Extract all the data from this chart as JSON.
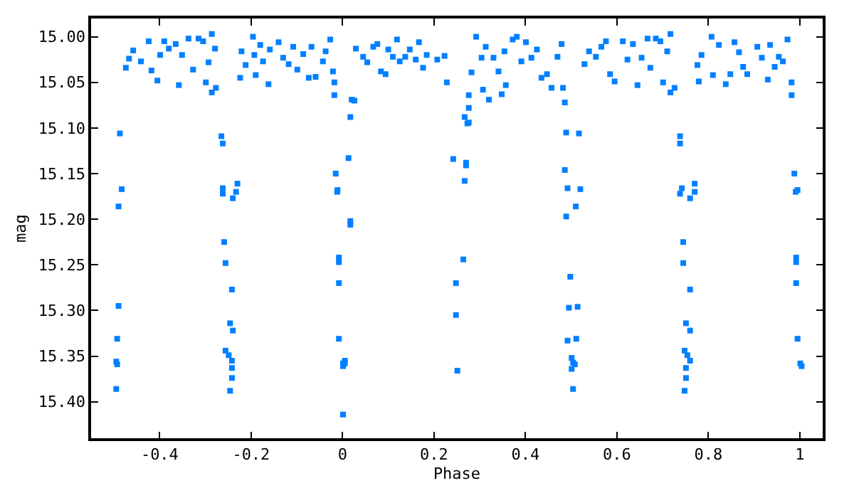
{
  "chart_data": {
    "type": "scatter",
    "xlabel": "Phase",
    "ylabel": "mag",
    "xlim": [
      -0.55,
      1.05
    ],
    "ylim": [
      15.44,
      14.98
    ],
    "xticks": [
      -0.4,
      -0.2,
      0,
      0.2,
      0.4,
      0.6,
      0.8,
      1
    ],
    "yticks": [
      {
        "value": 15.0,
        "label": "15.00"
      },
      {
        "value": 15.05,
        "label": "15.05"
      },
      {
        "value": 15.1,
        "label": "15.10"
      },
      {
        "value": 15.15,
        "label": "15.15"
      },
      {
        "value": 15.2,
        "label": "15.20"
      },
      {
        "value": 15.25,
        "label": "15.25"
      },
      {
        "value": 15.3,
        "label": "15.30"
      },
      {
        "value": 15.35,
        "label": "15.35"
      },
      {
        "value": 15.4,
        "label": "15.40"
      }
    ],
    "marker": "square",
    "series": [
      {
        "color": "#0080ff",
        "x": [
          -0.474,
          -0.467,
          -0.458,
          -0.441,
          -0.424,
          -0.418,
          -0.405,
          -0.399,
          -0.39,
          -0.38,
          -0.365,
          -0.358,
          -0.351,
          -0.337,
          -0.327,
          -0.315,
          -0.305,
          -0.299,
          -0.293,
          -0.286,
          -0.279,
          -0.277,
          -0.286,
          -0.224,
          -0.221,
          -0.212,
          -0.196,
          -0.193,
          -0.19,
          -0.18,
          -0.174,
          -0.162,
          -0.159,
          -0.14,
          -0.13,
          -0.118,
          -0.108,
          -0.099,
          -0.086,
          -0.074,
          -0.068,
          -0.059,
          -0.043,
          -0.037,
          0.029,
          0.045,
          0.054,
          0.067,
          0.076,
          0.084,
          0.094,
          0.1,
          0.11,
          0.119,
          0.125,
          0.137,
          0.147,
          0.16,
          0.167,
          0.176,
          0.184,
          0.207,
          0.223,
          0.228,
          0.282,
          0.292,
          0.304,
          0.313,
          0.33,
          0.341,
          0.354,
          0.372,
          0.381,
          0.391,
          0.401,
          0.413,
          0.425,
          0.435,
          0.447,
          0.457,
          0.47,
          0.479,
          0.529,
          0.539,
          0.554,
          0.566,
          0.576,
          0.585,
          0.595,
          0.613,
          0.623,
          0.635,
          0.645,
          0.654,
          0.667,
          0.673,
          0.685,
          0.695,
          0.701,
          0.71,
          0.717,
          0.776,
          0.779,
          0.785,
          0.807,
          0.81,
          0.823,
          0.838,
          0.848,
          0.857,
          0.867,
          0.876,
          0.885,
          0.907,
          0.917,
          0.93,
          0.935,
          0.945,
          0.954,
          0.963,
          -0.487,
          -0.483,
          -0.49,
          -0.49,
          -0.493,
          -0.495,
          -0.493,
          -0.495,
          -0.265,
          -0.262,
          -0.262,
          -0.262,
          -0.23,
          -0.233,
          -0.24,
          -0.259,
          -0.256,
          -0.242,
          -0.246,
          -0.24,
          -0.256,
          -0.249,
          -0.242,
          -0.242,
          -0.242,
          -0.246,
          -0.027,
          -0.021,
          -0.018,
          -0.018,
          0.02,
          0.026,
          0.017,
          0.013,
          -0.015,
          -0.012,
          -0.011,
          0.017,
          0.017,
          -0.008,
          -0.008,
          -0.008,
          -0.008,
          0.001,
          0.005,
          0.001,
          0.005,
          0.001,
          0.276,
          0.276,
          0.267,
          0.273,
          0.276,
          0.242,
          0.27,
          0.27,
          0.267,
          0.357,
          0.32,
          0.307,
          0.348,
          0.264,
          0.248,
          0.248,
          0.251,
          0.482,
          0.486,
          0.489,
          0.517,
          0.486,
          0.492,
          0.52,
          0.51,
          0.489,
          0.498,
          0.495,
          0.514,
          0.492,
          0.511,
          0.501,
          0.504,
          0.508,
          0.501,
          0.504,
          0.717,
          0.726,
          0.738,
          0.738,
          0.742,
          0.77,
          0.77,
          0.738,
          0.76,
          0.745,
          0.745,
          0.76,
          0.751,
          0.76,
          0.748,
          0.754,
          0.76,
          0.751,
          0.751,
          0.748,
          0.973,
          0.982,
          0.982,
          0.988,
          0.991,
          0.995,
          0.992,
          0.992,
          0.992,
          0.995,
          1.001,
          1.004
        ],
        "values": [
          15.034,
          15.024,
          15.015,
          15.027,
          15.005,
          15.037,
          15.048,
          15.02,
          15.005,
          15.013,
          15.008,
          15.053,
          15.02,
          15.002,
          15.036,
          15.002,
          15.005,
          15.05,
          15.028,
          14.997,
          15.013,
          15.056,
          15.061,
          15.045,
          15.016,
          15.031,
          15.0,
          15.02,
          15.042,
          15.009,
          15.027,
          15.052,
          15.014,
          15.006,
          15.023,
          15.03,
          15.011,
          15.036,
          15.019,
          15.045,
          15.011,
          15.044,
          15.027,
          15.016,
          15.013,
          15.022,
          15.028,
          15.011,
          15.008,
          15.038,
          15.041,
          15.014,
          15.022,
          15.003,
          15.027,
          15.022,
          15.014,
          15.025,
          15.006,
          15.034,
          15.02,
          15.025,
          15.021,
          15.05,
          15.039,
          15.0,
          15.023,
          15.011,
          15.023,
          15.038,
          15.016,
          15.003,
          15.0,
          15.027,
          15.006,
          15.023,
          15.014,
          15.045,
          15.041,
          15.056,
          15.022,
          15.008,
          15.03,
          15.016,
          15.022,
          15.011,
          15.005,
          15.041,
          15.049,
          15.005,
          15.025,
          15.008,
          15.053,
          15.023,
          15.002,
          15.034,
          15.002,
          15.005,
          15.05,
          15.016,
          14.997,
          15.031,
          15.049,
          15.02,
          15.0,
          15.042,
          15.009,
          15.052,
          15.041,
          15.006,
          15.017,
          15.033,
          15.041,
          15.011,
          15.023,
          15.047,
          15.009,
          15.033,
          15.022,
          15.027,
          15.106,
          15.167,
          15.186,
          15.295,
          15.331,
          15.356,
          15.359,
          15.386,
          15.109,
          15.117,
          15.166,
          15.172,
          15.161,
          15.17,
          15.177,
          15.225,
          15.248,
          15.277,
          15.314,
          15.322,
          15.344,
          15.349,
          15.355,
          15.363,
          15.374,
          15.388,
          15.003,
          15.038,
          15.05,
          15.064,
          15.069,
          15.07,
          15.088,
          15.133,
          15.15,
          15.17,
          15.168,
          15.202,
          15.206,
          15.242,
          15.247,
          15.27,
          15.331,
          15.358,
          15.355,
          15.361,
          15.358,
          15.414,
          15.064,
          15.078,
          15.088,
          15.095,
          15.094,
          15.134,
          15.138,
          15.141,
          15.158,
          15.053,
          15.069,
          15.058,
          15.063,
          15.244,
          15.27,
          15.305,
          15.366,
          15.056,
          15.072,
          15.105,
          15.106,
          15.146,
          15.166,
          15.167,
          15.186,
          15.197,
          15.263,
          15.297,
          15.296,
          15.333,
          15.331,
          15.352,
          15.357,
          15.359,
          15.364,
          15.386,
          15.061,
          15.056,
          15.109,
          15.117,
          15.166,
          15.161,
          15.17,
          15.172,
          15.177,
          15.225,
          15.248,
          15.277,
          15.314,
          15.322,
          15.344,
          15.349,
          15.355,
          15.363,
          15.374,
          15.388,
          15.003,
          15.05,
          15.064,
          15.15,
          15.17,
          15.168,
          15.242,
          15.247,
          15.27,
          15.331,
          15.358,
          15.361
        ]
      }
    ]
  }
}
